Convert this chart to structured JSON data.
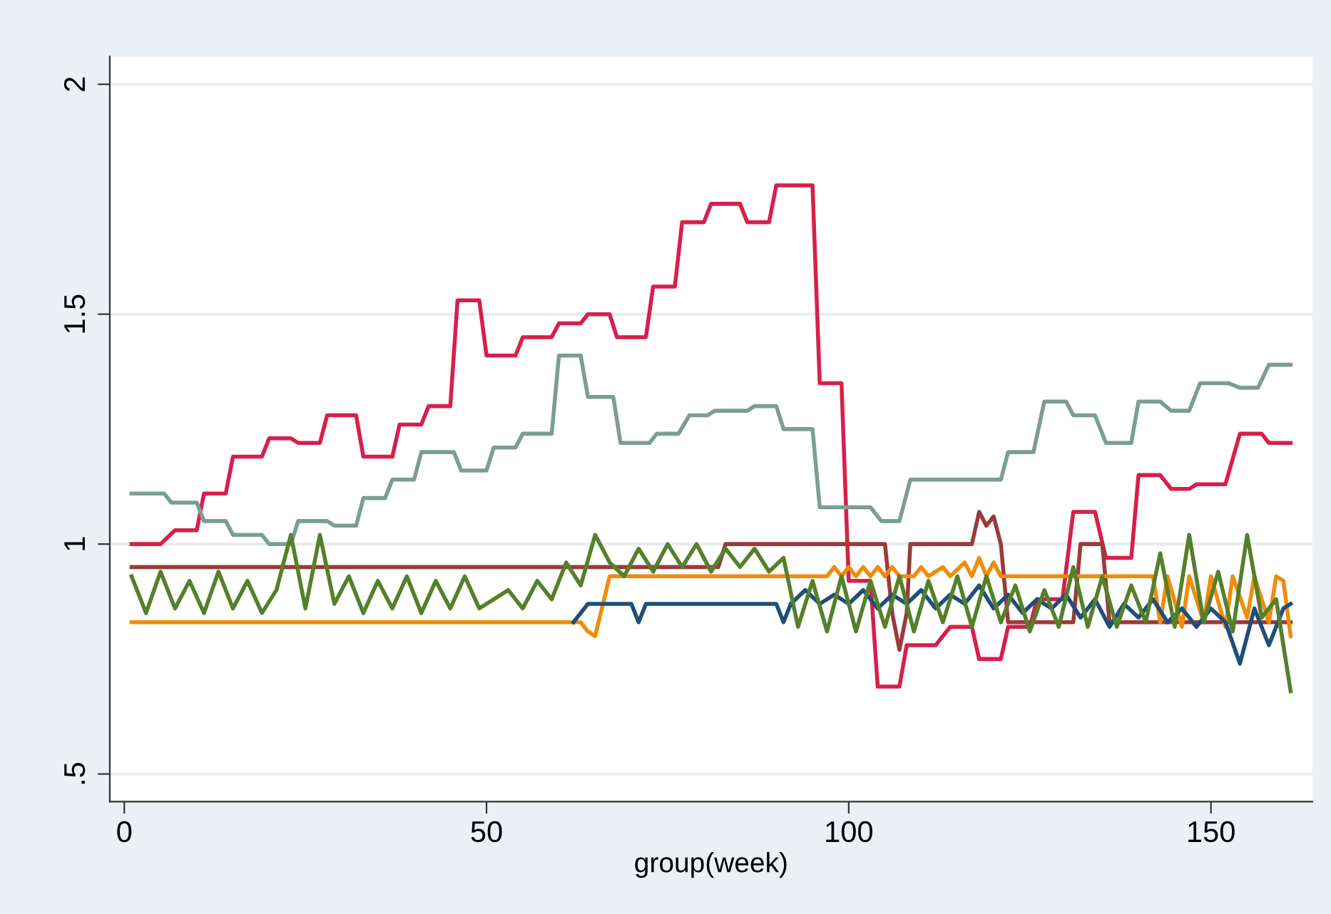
{
  "chart_data": {
    "type": "line",
    "xlabel": "group(week)",
    "xlim": [
      -2,
      164
    ],
    "xticks": [
      0,
      50,
      100,
      150
    ],
    "ylim": [
      0.44,
      2.06
    ],
    "yticks": [
      {
        "value": 0.5,
        "label": ".5"
      },
      1,
      1.5,
      2
    ],
    "grid": "y",
    "marker": "none",
    "line_style": "solid",
    "series": [
      {
        "color": "#d6204a",
        "x": [
          1,
          5,
          7,
          10,
          11,
          14,
          15,
          19,
          20,
          23,
          24,
          27,
          28,
          32,
          33,
          37,
          38,
          41,
          42,
          45,
          46,
          49,
          50,
          54,
          55,
          59,
          60,
          63,
          64,
          67,
          68,
          72,
          73,
          76,
          77,
          80,
          81,
          85,
          86,
          89,
          90,
          95,
          96,
          99,
          100,
          103,
          104,
          107,
          108,
          112,
          114,
          117,
          118,
          121,
          122,
          125,
          126,
          129.5,
          131,
          134,
          135.5,
          139,
          140,
          143,
          144.5,
          147,
          148,
          152,
          154,
          157,
          158,
          161
        ],
        "values": [
          1.0,
          1.0,
          1.03,
          1.03,
          1.11,
          1.11,
          1.19,
          1.19,
          1.23,
          1.23,
          1.22,
          1.22,
          1.28,
          1.28,
          1.19,
          1.19,
          1.26,
          1.26,
          1.3,
          1.3,
          1.53,
          1.53,
          1.41,
          1.41,
          1.45,
          1.45,
          1.48,
          1.48,
          1.5,
          1.5,
          1.45,
          1.45,
          1.56,
          1.56,
          1.7,
          1.7,
          1.74,
          1.74,
          1.7,
          1.7,
          1.78,
          1.78,
          1.35,
          1.35,
          0.92,
          0.92,
          0.69,
          0.69,
          0.78,
          0.78,
          0.82,
          0.82,
          0.75,
          0.75,
          0.82,
          0.82,
          0.88,
          0.88,
          1.07,
          1.07,
          0.97,
          0.97,
          1.15,
          1.15,
          1.12,
          1.12,
          1.13,
          1.13,
          1.24,
          1.24,
          1.22,
          1.22
        ]
      },
      {
        "color": "#7b9e94",
        "x": [
          1,
          5.5,
          6.5,
          10,
          11,
          14,
          15,
          19,
          20,
          23,
          24,
          28,
          29,
          32,
          33,
          36,
          37,
          40,
          41,
          45.5,
          46.5,
          50,
          51,
          54,
          55,
          59,
          60,
          63,
          64,
          67.5,
          68.5,
          72.5,
          73.5,
          76.5,
          78,
          80.5,
          81.5,
          86,
          87,
          90,
          91,
          95,
          96,
          103,
          104.5,
          107,
          108.5,
          121,
          122,
          125.5,
          127,
          130,
          131,
          134,
          135.5,
          139,
          140,
          143,
          144.5,
          147,
          148.5,
          152.4,
          154,
          156.5,
          158,
          161
        ],
        "values": [
          1.11,
          1.11,
          1.09,
          1.09,
          1.05,
          1.05,
          1.02,
          1.02,
          1.0,
          1.0,
          1.05,
          1.05,
          1.04,
          1.04,
          1.1,
          1.1,
          1.14,
          1.14,
          1.2,
          1.2,
          1.16,
          1.16,
          1.21,
          1.21,
          1.24,
          1.24,
          1.41,
          1.41,
          1.32,
          1.32,
          1.22,
          1.22,
          1.24,
          1.24,
          1.28,
          1.28,
          1.29,
          1.29,
          1.3,
          1.3,
          1.25,
          1.25,
          1.08,
          1.08,
          1.05,
          1.05,
          1.14,
          1.14,
          1.2,
          1.2,
          1.31,
          1.31,
          1.28,
          1.28,
          1.22,
          1.22,
          1.31,
          1.31,
          1.29,
          1.29,
          1.35,
          1.35,
          1.34,
          1.34,
          1.39,
          1.39
        ]
      },
      {
        "color": "#9b3a3a",
        "x": [
          1,
          82,
          83,
          105,
          106,
          107,
          108,
          108.5,
          117,
          118,
          119,
          120,
          121,
          122,
          131,
          132,
          135,
          136,
          161
        ],
        "values": [
          0.95,
          0.95,
          1.0,
          1.0,
          0.85,
          0.77,
          0.85,
          1.0,
          1.0,
          1.07,
          1.04,
          1.06,
          1.0,
          0.83,
          0.83,
          1.0,
          1.0,
          0.83,
          0.83
        ]
      },
      {
        "color": "#f08c0a",
        "x": [
          1,
          63,
          64,
          65,
          67,
          97,
          98,
          99,
          100,
          101,
          102,
          103,
          104,
          105,
          106,
          107,
          109,
          110,
          111,
          113,
          114,
          116,
          117,
          118,
          119,
          120,
          121,
          142,
          143,
          144,
          146,
          147,
          149,
          150,
          152,
          153,
          155,
          156,
          158,
          159,
          160,
          161
        ],
        "values": [
          0.83,
          0.83,
          0.81,
          0.8,
          0.93,
          0.93,
          0.95,
          0.93,
          0.95,
          0.93,
          0.95,
          0.93,
          0.95,
          0.93,
          0.95,
          0.93,
          0.93,
          0.95,
          0.93,
          0.95,
          0.93,
          0.96,
          0.93,
          0.97,
          0.93,
          0.96,
          0.93,
          0.93,
          0.83,
          0.93,
          0.82,
          0.93,
          0.83,
          0.93,
          0.82,
          0.93,
          0.84,
          0.93,
          0.83,
          0.93,
          0.92,
          0.8
        ]
      },
      {
        "color": "#1f4e7a",
        "x": [
          62,
          64,
          70,
          71,
          72,
          90,
          91,
          92,
          94,
          96,
          98,
          100,
          102,
          104,
          106,
          108,
          110,
          112,
          114,
          116,
          118,
          120,
          122,
          124,
          126,
          128,
          130,
          132,
          134,
          136,
          138,
          140,
          142,
          144,
          146,
          148,
          150,
          152,
          154,
          156,
          158,
          160,
          161
        ],
        "values": [
          0.83,
          0.87,
          0.87,
          0.83,
          0.87,
          0.87,
          0.83,
          0.87,
          0.9,
          0.87,
          0.89,
          0.87,
          0.9,
          0.86,
          0.89,
          0.87,
          0.9,
          0.86,
          0.89,
          0.87,
          0.91,
          0.86,
          0.89,
          0.85,
          0.88,
          0.86,
          0.89,
          0.84,
          0.88,
          0.82,
          0.87,
          0.84,
          0.88,
          0.83,
          0.86,
          0.82,
          0.86,
          0.83,
          0.74,
          0.86,
          0.78,
          0.86,
          0.87
        ]
      },
      {
        "color": "#55802a",
        "x": [
          1,
          3,
          5,
          7,
          9,
          11,
          13,
          15,
          17,
          19,
          21,
          23,
          25,
          27,
          29,
          31,
          33,
          35,
          37,
          39,
          41,
          43,
          45,
          47,
          49,
          51,
          53,
          55,
          57,
          59,
          61,
          63,
          65,
          67,
          69,
          71,
          73,
          75,
          77,
          79,
          81,
          83,
          85,
          87,
          89,
          91,
          93,
          95,
          97,
          99,
          101,
          103,
          105,
          107,
          109,
          111,
          113,
          115,
          117,
          119,
          121,
          123,
          125,
          127,
          129,
          131,
          133,
          135,
          137,
          139,
          141,
          143,
          145,
          147,
          149,
          151,
          153,
          155,
          157,
          159,
          161
        ],
        "values": [
          0.93,
          0.85,
          0.94,
          0.86,
          0.92,
          0.85,
          0.94,
          0.86,
          0.92,
          0.85,
          0.9,
          1.02,
          0.86,
          1.02,
          0.87,
          0.93,
          0.85,
          0.92,
          0.86,
          0.93,
          0.85,
          0.92,
          0.86,
          0.93,
          0.86,
          0.88,
          0.9,
          0.86,
          0.92,
          0.88,
          0.96,
          0.91,
          1.02,
          0.96,
          0.93,
          0.99,
          0.94,
          1.0,
          0.95,
          1.0,
          0.94,
          0.99,
          0.95,
          0.99,
          0.94,
          0.97,
          0.82,
          0.92,
          0.81,
          0.93,
          0.81,
          0.92,
          0.82,
          0.93,
          0.81,
          0.92,
          0.83,
          0.93,
          0.82,
          0.93,
          0.83,
          0.91,
          0.81,
          0.9,
          0.82,
          0.95,
          0.82,
          0.93,
          0.82,
          0.91,
          0.83,
          0.98,
          0.82,
          1.02,
          0.83,
          0.94,
          0.81,
          1.02,
          0.84,
          0.88,
          0.68
        ]
      }
    ]
  }
}
